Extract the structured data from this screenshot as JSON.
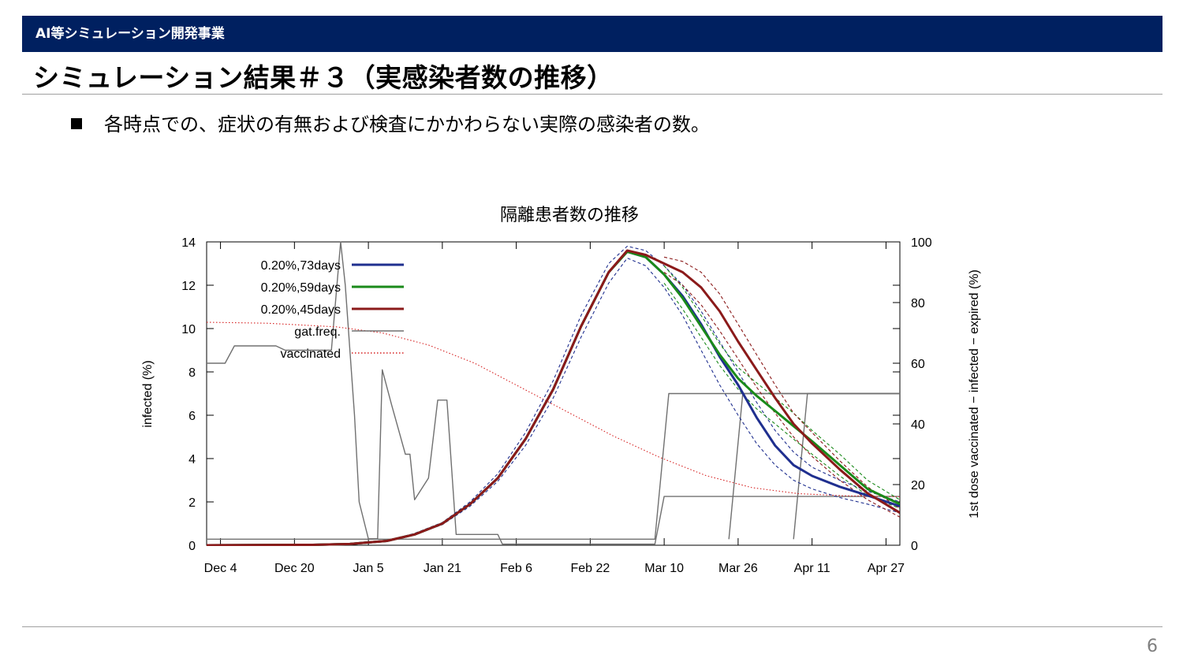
{
  "header": {
    "section_label": "AI等シミュレーション開発事業"
  },
  "slide": {
    "title": "シミュレーション結果＃３（実感染者数の推移）",
    "bullet": "各時点での、症状の有無および検査にかかわらない実際の感染者の数。",
    "page_number": "6"
  },
  "colors": {
    "header_bg": "#002060",
    "series_73": "#1f2f8f",
    "series_59": "#1a8a1a",
    "series_45": "#8b1a1a",
    "gat_freq": "#707070",
    "vaccinated": "#d62020"
  },
  "chart_data": {
    "type": "line",
    "title": "隔離患者数の推移",
    "ylabel": "infected (%)",
    "y2label": "1st dose vaccinated − infected − expired (%)",
    "x_ticks": [
      "Dec 4",
      "Dec 20",
      "Jan 5",
      "Jan 21",
      "Feb 6",
      "Feb 22",
      "Mar 10",
      "Mar 26",
      "Apr 11",
      "Apr 27"
    ],
    "x_tick_days": [
      0,
      16,
      32,
      48,
      64,
      80,
      96,
      112,
      128,
      144
    ],
    "x_range_days": [
      -3,
      147
    ],
    "ylim": [
      0,
      14
    ],
    "y_ticks": [
      0,
      2,
      4,
      6,
      8,
      10,
      12,
      14
    ],
    "y2lim": [
      0,
      100
    ],
    "y2_ticks": [
      0,
      20,
      40,
      60,
      80,
      100
    ],
    "legend_position": "top-left",
    "series": [
      {
        "name": "0.20%,73days",
        "axis": "y",
        "style": "solid",
        "color_key": "series_73",
        "points": [
          [
            -3,
            0
          ],
          [
            20,
            0.02
          ],
          [
            28,
            0.06
          ],
          [
            36,
            0.2
          ],
          [
            42,
            0.5
          ],
          [
            48,
            1.0
          ],
          [
            54,
            1.9
          ],
          [
            60,
            3.1
          ],
          [
            66,
            4.9
          ],
          [
            72,
            7.2
          ],
          [
            78,
            10.1
          ],
          [
            84,
            12.6
          ],
          [
            88,
            13.55
          ],
          [
            92,
            13.3
          ],
          [
            96,
            12.5
          ],
          [
            100,
            11.5
          ],
          [
            104,
            10.2
          ],
          [
            108,
            8.7
          ],
          [
            112,
            7.4
          ],
          [
            116,
            5.9
          ],
          [
            120,
            4.6
          ],
          [
            124,
            3.7
          ],
          [
            128,
            3.2
          ],
          [
            134,
            2.7
          ],
          [
            140,
            2.3
          ],
          [
            147,
            1.8
          ]
        ]
      },
      {
        "name": "0.20%,59days",
        "axis": "y",
        "style": "solid",
        "color_key": "series_59",
        "points": [
          [
            -3,
            0
          ],
          [
            20,
            0.02
          ],
          [
            28,
            0.06
          ],
          [
            36,
            0.2
          ],
          [
            42,
            0.5
          ],
          [
            48,
            1.0
          ],
          [
            54,
            1.9
          ],
          [
            60,
            3.1
          ],
          [
            66,
            4.9
          ],
          [
            72,
            7.2
          ],
          [
            78,
            10.1
          ],
          [
            84,
            12.6
          ],
          [
            88,
            13.55
          ],
          [
            92,
            13.3
          ],
          [
            96,
            12.5
          ],
          [
            100,
            11.4
          ],
          [
            104,
            10.1
          ],
          [
            108,
            8.8
          ],
          [
            112,
            7.7
          ],
          [
            116,
            6.9
          ],
          [
            120,
            6.2
          ],
          [
            124,
            5.5
          ],
          [
            128,
            4.8
          ],
          [
            134,
            3.7
          ],
          [
            140,
            2.6
          ],
          [
            147,
            1.9
          ]
        ]
      },
      {
        "name": "0.20%,45days",
        "axis": "y",
        "style": "solid",
        "color_key": "series_45",
        "points": [
          [
            -3,
            0
          ],
          [
            20,
            0.02
          ],
          [
            28,
            0.06
          ],
          [
            36,
            0.2
          ],
          [
            42,
            0.5
          ],
          [
            48,
            1.0
          ],
          [
            54,
            1.9
          ],
          [
            60,
            3.1
          ],
          [
            66,
            4.9
          ],
          [
            72,
            7.2
          ],
          [
            78,
            10.1
          ],
          [
            84,
            12.6
          ],
          [
            88,
            13.6
          ],
          [
            92,
            13.4
          ],
          [
            96,
            13.0
          ],
          [
            100,
            12.6
          ],
          [
            104,
            11.9
          ],
          [
            108,
            10.8
          ],
          [
            112,
            9.4
          ],
          [
            116,
            8.1
          ],
          [
            120,
            6.8
          ],
          [
            124,
            5.6
          ],
          [
            128,
            4.7
          ],
          [
            134,
            3.5
          ],
          [
            140,
            2.4
          ],
          [
            147,
            1.5
          ]
        ]
      },
      {
        "name": "gat.freq.",
        "axis": "y",
        "style": "solid",
        "color_key": "gat_freq",
        "points": [
          [
            -3,
            8.4
          ],
          [
            1,
            8.4
          ],
          [
            3,
            9.2
          ],
          [
            11,
            9.2
          ],
          [
            12,
            9.2
          ],
          [
            14,
            9.0
          ],
          [
            24,
            9.0
          ],
          [
            26,
            14
          ],
          [
            27,
            12
          ],
          [
            29,
            6
          ],
          [
            30,
            2
          ],
          [
            32,
            0.3
          ],
          [
            34,
            0.3
          ],
          [
            35,
            8.1
          ],
          [
            37,
            6.5
          ],
          [
            40,
            4.2
          ],
          [
            41,
            4.2
          ],
          [
            42,
            2.1
          ],
          [
            45,
            3.1
          ],
          [
            47,
            6.7
          ],
          [
            49,
            6.7
          ],
          [
            51,
            0.5
          ],
          [
            60,
            0.5
          ],
          [
            61,
            0.05
          ],
          [
            94,
            0.05
          ],
          [
            96,
            2.25
          ],
          [
            147,
            2.25
          ]
        ]
      },
      {
        "name": "",
        "axis": "y2",
        "style": "solid",
        "color_key": "gat_freq",
        "points": [
          [
            -3,
            2
          ],
          [
            94,
            2
          ],
          [
            97,
            50
          ],
          [
            147,
            50
          ]
        ]
      },
      {
        "name": "",
        "axis": "y2",
        "style": "solid",
        "color_key": "gat_freq",
        "points": [
          [
            110,
            2
          ],
          [
            113,
            50
          ],
          [
            147,
            50
          ]
        ]
      },
      {
        "name": "",
        "axis": "y2",
        "style": "solid",
        "color_key": "gat_freq",
        "points": [
          [
            124,
            2
          ],
          [
            127,
            50
          ],
          [
            147,
            50
          ]
        ]
      },
      {
        "name": "vaccinated",
        "axis": "y2",
        "style": "dotted",
        "color_key": "vaccinated",
        "points": [
          [
            -3,
            73.5
          ],
          [
            10,
            73.2
          ],
          [
            25,
            72
          ],
          [
            35,
            70
          ],
          [
            45,
            66
          ],
          [
            55,
            60
          ],
          [
            65,
            52
          ],
          [
            75,
            44
          ],
          [
            85,
            36
          ],
          [
            95,
            29
          ],
          [
            105,
            23
          ],
          [
            115,
            19
          ],
          [
            125,
            17
          ],
          [
            135,
            16.3
          ],
          [
            147,
            16
          ]
        ]
      },
      {
        "name": "",
        "axis": "y",
        "style": "dashed",
        "color_key": "series_73",
        "points": [
          [
            28,
            0.06
          ],
          [
            36,
            0.2
          ],
          [
            42,
            0.5
          ],
          [
            48,
            0.95
          ],
          [
            54,
            1.8
          ],
          [
            60,
            2.95
          ],
          [
            66,
            4.6
          ],
          [
            72,
            6.8
          ],
          [
            78,
            9.6
          ],
          [
            84,
            12.1
          ],
          [
            88,
            13.25
          ],
          [
            92,
            12.9
          ],
          [
            96,
            11.9
          ],
          [
            100,
            10.6
          ],
          [
            104,
            9.0
          ],
          [
            108,
            7.4
          ],
          [
            112,
            6.0
          ],
          [
            116,
            4.7
          ],
          [
            120,
            3.7
          ],
          [
            124,
            3.0
          ],
          [
            128,
            2.6
          ],
          [
            134,
            2.2
          ],
          [
            140,
            1.9
          ],
          [
            147,
            1.5
          ]
        ]
      },
      {
        "name": "",
        "axis": "y",
        "style": "dashed",
        "color_key": "series_73",
        "points": [
          [
            28,
            0.07
          ],
          [
            36,
            0.22
          ],
          [
            42,
            0.55
          ],
          [
            48,
            1.05
          ],
          [
            54,
            2.0
          ],
          [
            60,
            3.3
          ],
          [
            66,
            5.2
          ],
          [
            72,
            7.6
          ],
          [
            78,
            10.6
          ],
          [
            84,
            13.0
          ],
          [
            88,
            13.8
          ],
          [
            92,
            13.6
          ],
          [
            96,
            12.9
          ],
          [
            100,
            12.0
          ],
          [
            104,
            10.8
          ],
          [
            108,
            9.4
          ],
          [
            112,
            8.0
          ],
          [
            116,
            6.6
          ],
          [
            120,
            5.3
          ],
          [
            124,
            4.3
          ],
          [
            128,
            3.6
          ],
          [
            134,
            3.0
          ],
          [
            140,
            2.5
          ],
          [
            147,
            2.0
          ]
        ]
      },
      {
        "name": "",
        "axis": "y",
        "style": "dashed",
        "color_key": "series_59",
        "points": [
          [
            96,
            12.1
          ],
          [
            100,
            10.9
          ],
          [
            104,
            9.6
          ],
          [
            108,
            8.3
          ],
          [
            112,
            7.2
          ],
          [
            116,
            6.3
          ],
          [
            120,
            5.6
          ],
          [
            124,
            4.9
          ],
          [
            128,
            4.2
          ],
          [
            134,
            3.2
          ],
          [
            140,
            2.3
          ],
          [
            147,
            1.7
          ]
        ]
      },
      {
        "name": "",
        "axis": "y",
        "style": "dashed",
        "color_key": "series_59",
        "points": [
          [
            96,
            12.9
          ],
          [
            100,
            11.9
          ],
          [
            104,
            10.6
          ],
          [
            108,
            9.3
          ],
          [
            112,
            8.2
          ],
          [
            116,
            7.5
          ],
          [
            120,
            6.8
          ],
          [
            124,
            6.1
          ],
          [
            128,
            5.3
          ],
          [
            134,
            4.2
          ],
          [
            140,
            3.0
          ],
          [
            147,
            2.1
          ]
        ]
      },
      {
        "name": "",
        "axis": "y",
        "style": "dashed",
        "color_key": "series_45",
        "points": [
          [
            96,
            12.6
          ],
          [
            100,
            12.0
          ],
          [
            104,
            11.1
          ],
          [
            108,
            9.9
          ],
          [
            112,
            8.6
          ],
          [
            116,
            7.3
          ],
          [
            120,
            6.1
          ],
          [
            124,
            5.0
          ],
          [
            128,
            4.1
          ],
          [
            134,
            3.0
          ],
          [
            140,
            2.1
          ],
          [
            147,
            1.3
          ]
        ]
      },
      {
        "name": "",
        "axis": "y",
        "style": "dashed",
        "color_key": "series_45",
        "points": [
          [
            96,
            13.3
          ],
          [
            100,
            13.1
          ],
          [
            104,
            12.6
          ],
          [
            108,
            11.6
          ],
          [
            112,
            10.2
          ],
          [
            116,
            8.8
          ],
          [
            120,
            7.4
          ],
          [
            124,
            6.1
          ],
          [
            128,
            5.2
          ],
          [
            134,
            3.9
          ],
          [
            140,
            2.7
          ],
          [
            147,
            1.7
          ]
        ]
      }
    ]
  }
}
